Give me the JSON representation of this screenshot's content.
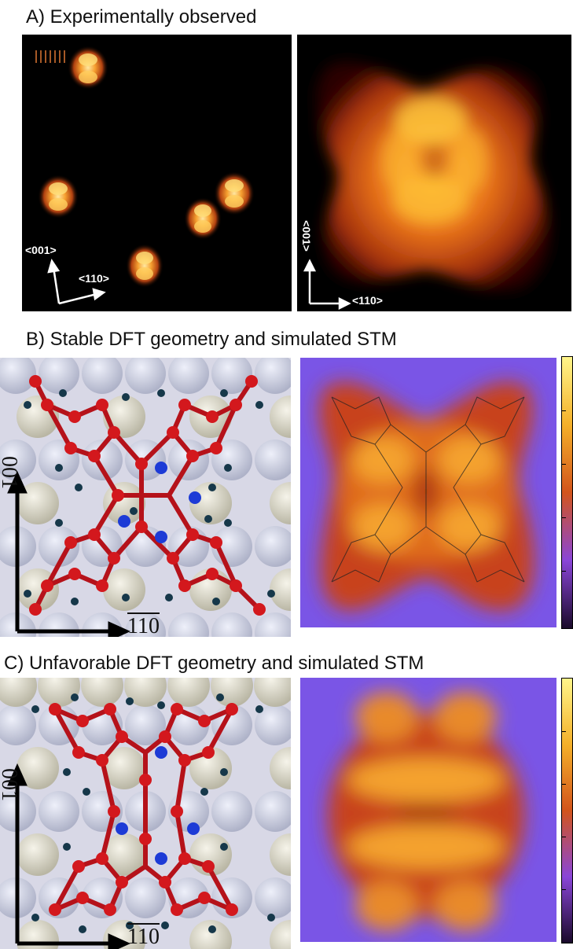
{
  "panel_a": {
    "title": "A) Experimentally observed",
    "left_dir_vertical": "<001>",
    "left_dir_horizontal": "<110>",
    "right_dir_vertical": "<001>",
    "right_dir_horizontal": "<110>"
  },
  "panel_b": {
    "title": "B) Stable DFT geometry and simulated STM",
    "axis_vertical": "001",
    "axis_horizontal": "110"
  },
  "panel_c": {
    "title": "C) Unfavorable DFT geometry and simulated STM",
    "axis_vertical": "001",
    "axis_horizontal": "110"
  },
  "colors": {
    "stm_dark": "#000000",
    "stm_mid": "#c44410",
    "stm_bright": "#ffe06a",
    "sim_background": "#7a55e6",
    "carbon": "#c8171b",
    "nitrogen": "#1d3bd6",
    "hydrogen": "#16384a",
    "surface_atom": "#e3e0cf"
  }
}
